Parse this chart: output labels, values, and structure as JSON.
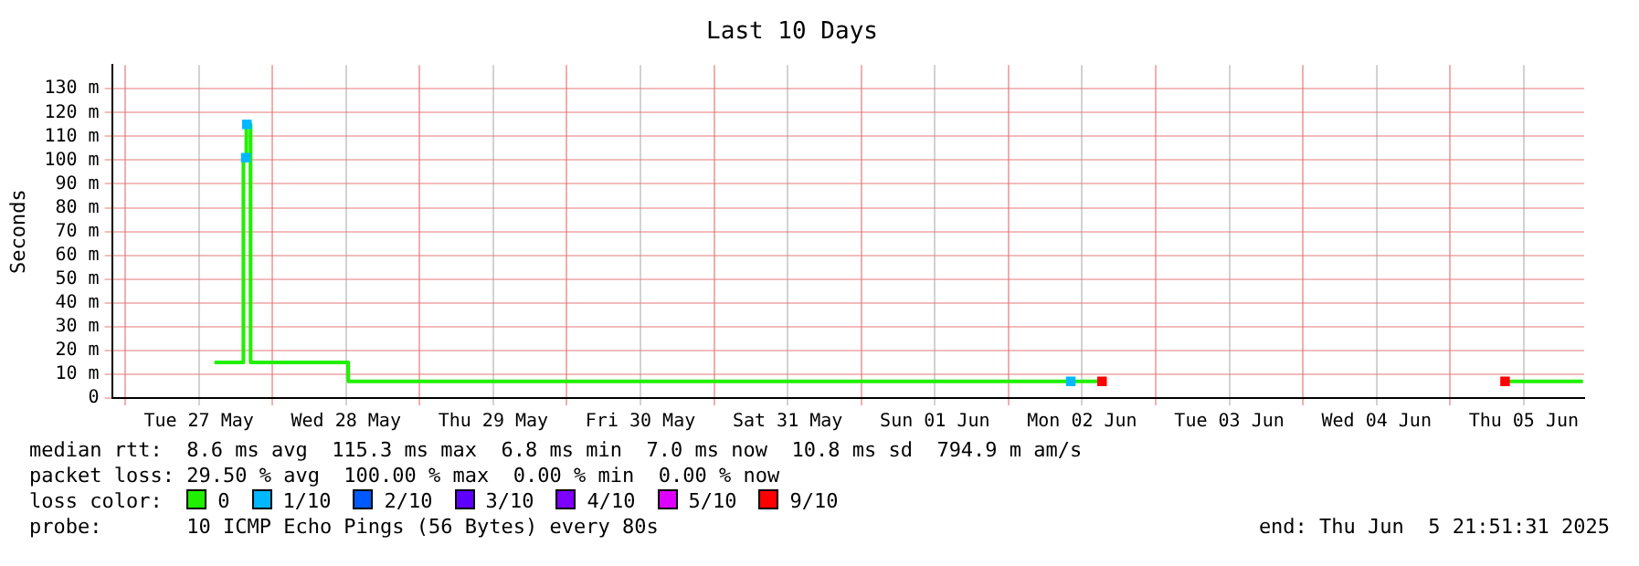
{
  "chart_data": {
    "type": "line",
    "title": "Last 10 Days",
    "ylabel": "Seconds",
    "xlim": [
      "2025-05-26T21:51",
      "2025-06-05T21:51"
    ],
    "xticks": [
      {
        "value": "2025-05-27T00:00",
        "label": null
      },
      {
        "value": "2025-05-27T12:00",
        "label": "Tue 27 May"
      },
      {
        "value": "2025-05-28T00:00",
        "label": null
      },
      {
        "value": "2025-05-28T12:00",
        "label": "Wed 28 May"
      },
      {
        "value": "2025-05-29T00:00",
        "label": null
      },
      {
        "value": "2025-05-29T12:00",
        "label": "Thu 29 May"
      },
      {
        "value": "2025-05-30T00:00",
        "label": null
      },
      {
        "value": "2025-05-30T12:00",
        "label": "Fri 30 May"
      },
      {
        "value": "2025-05-31T00:00",
        "label": null
      },
      {
        "value": "2025-05-31T12:00",
        "label": "Sat 31 May"
      },
      {
        "value": "2025-06-01T00:00",
        "label": null
      },
      {
        "value": "2025-06-01T12:00",
        "label": "Sun 01 Jun"
      },
      {
        "value": "2025-06-02T00:00",
        "label": null
      },
      {
        "value": "2025-06-02T12:00",
        "label": "Mon 02 Jun"
      },
      {
        "value": "2025-06-03T00:00",
        "label": null
      },
      {
        "value": "2025-06-03T12:00",
        "label": "Tue 03 Jun"
      },
      {
        "value": "2025-06-04T00:00",
        "label": null
      },
      {
        "value": "2025-06-04T12:00",
        "label": "Wed 04 Jun"
      },
      {
        "value": "2025-06-05T00:00",
        "label": null
      },
      {
        "value": "2025-06-05T12:00",
        "label": "Thu 05 Jun"
      }
    ],
    "ylim": [
      0,
      140
    ],
    "yticks": [
      0,
      {
        "value": 10,
        "label": "10 m"
      },
      {
        "value": 20,
        "label": "20 m"
      },
      {
        "value": 30,
        "label": "30 m"
      },
      {
        "value": 40,
        "label": "40 m"
      },
      {
        "value": 50,
        "label": "50 m"
      },
      {
        "value": 60,
        "label": "60 m"
      },
      {
        "value": 70,
        "label": "70 m"
      },
      {
        "value": 80,
        "label": "80 m"
      },
      {
        "value": 90,
        "label": "90 m"
      },
      {
        "value": 100,
        "label": "100 m"
      },
      {
        "value": 110,
        "label": "110 m"
      },
      {
        "value": 120,
        "label": "120 m"
      },
      {
        "value": 130,
        "label": "130 m"
      }
    ],
    "grid": true,
    "legend": "bottom",
    "series": [
      {
        "name": "0",
        "color": "#20f000",
        "type": "line",
        "x": [
          "2025-05-27T14:33",
          "2025-05-27T19:15",
          "2025-05-27T19:16",
          "2025-05-27T19:40",
          "2025-05-27T19:45",
          "2025-05-27T20:25",
          "2025-05-27T20:27",
          "2025-05-28T12:20",
          "2025-05-28T12:22",
          "2025-06-02T15:15",
          "2025-06-02T18:00",
          "2025-06-05T08:57",
          "2025-06-05T21:39"
        ],
        "values": [
          15,
          15,
          100,
          101,
          115,
          115,
          15,
          15,
          7,
          7,
          null,
          7,
          7
        ]
      },
      {
        "name": "1/10",
        "color": "#00b8ff",
        "type": "scatter",
        "x": [
          "2025-05-27T19:40",
          "2025-05-27T19:50",
          "2025-06-02T10:09"
        ],
        "values": [
          101,
          115,
          7
        ]
      },
      {
        "name": "2/10",
        "color": "#0059ff",
        "type": "scatter"
      },
      {
        "name": "3/10",
        "color": "#5e00ff",
        "type": "scatter"
      },
      {
        "name": "4/10",
        "color": "#7e00ff",
        "type": "scatter"
      },
      {
        "name": "5/10",
        "color": "#dd00ff",
        "type": "scatter"
      },
      {
        "name": "9/10",
        "color": "#ff0000",
        "type": "scatter",
        "x": [
          "2025-06-02T15:15",
          "2025-06-05T08:57"
        ],
        "values": [
          7,
          7
        ]
      }
    ],
    "legend_title": "loss color:",
    "annotations": [
      "median rtt:  8.6 ms avg  115.3 ms max  6.8 ms min  7.0 ms now  10.8 ms sd  794.9 m am/s",
      "packet loss: 29.50 % avg  100.00 % max  0.00 % min  0.00 % now",
      "probe:       10 ICMP Echo Pings (56 Bytes) every 80s",
      "end: Thu Jun  5 21:51:31 2025"
    ]
  }
}
